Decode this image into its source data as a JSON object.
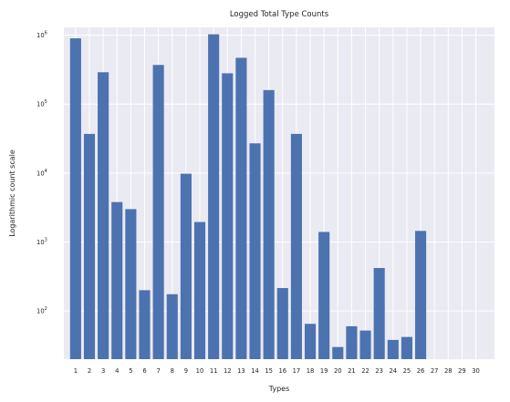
{
  "chart_data": {
    "type": "bar",
    "title": "Logged Total Type Counts",
    "xlabel": "Types",
    "ylabel": "Logarithmic count scale",
    "yscale": "log",
    "ylim": [
      20,
      1300000
    ],
    "y_ticks": [
      {
        "value": 100,
        "base": "10",
        "exp": "2"
      },
      {
        "value": 1000,
        "base": "10",
        "exp": "3"
      },
      {
        "value": 10000,
        "base": "10",
        "exp": "4"
      },
      {
        "value": 100000,
        "base": "10",
        "exp": "5"
      },
      {
        "value": 1000000,
        "base": "10",
        "exp": "6"
      }
    ],
    "grid": true,
    "background": "#eaeaf2",
    "bar_color": "#4c72b0",
    "categories": [
      "1",
      "2",
      "3",
      "4",
      "5",
      "6",
      "7",
      "8",
      "9",
      "10",
      "11",
      "12",
      "13",
      "14",
      "15",
      "16",
      "17",
      "18",
      "19",
      "20",
      "21",
      "22",
      "23",
      "24",
      "25",
      "26",
      "27",
      "28",
      "29",
      "30"
    ],
    "values": [
      900000,
      37000,
      290000,
      3800,
      3000,
      200,
      370000,
      175,
      9800,
      1950,
      1030000,
      280000,
      470000,
      27000,
      160000,
      215,
      37000,
      65,
      1400,
      30,
      60,
      52,
      420,
      38,
      42,
      1450,
      0,
      0,
      0,
      0
    ]
  }
}
